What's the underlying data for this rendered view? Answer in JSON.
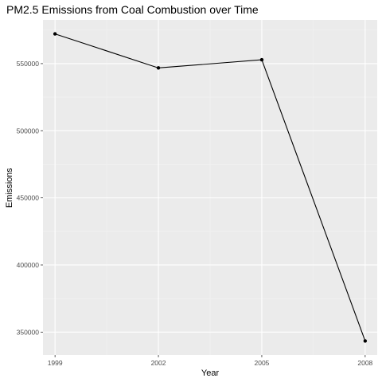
{
  "chart_data": {
    "type": "line",
    "title": "PM2.5 Emissions from Coal Combustion over Time",
    "xlabel": "Year",
    "ylabel": "Emissions",
    "x": [
      1999,
      2002,
      2005,
      2008
    ],
    "series": [
      {
        "values": [
          572126,
          546789,
          552881,
          343432
        ]
      }
    ],
    "x_ticks": [
      "1999",
      "2002",
      "2005",
      "2008"
    ],
    "y_ticks": [
      "350000",
      "400000",
      "450000",
      "500000",
      "550000"
    ],
    "y_tick_values": [
      350000,
      400000,
      450000,
      500000,
      550000
    ],
    "xlim": [
      1998.65,
      2008.35
    ],
    "ylim": [
      332995,
      582563
    ],
    "grid": true,
    "legend": "none",
    "colors": {
      "panel_background": "#ebebeb",
      "grid_major": "#ffffff",
      "grid_minor": "#f3f3f3",
      "line": "#000000",
      "tick_text": "#4d4d4d"
    }
  }
}
